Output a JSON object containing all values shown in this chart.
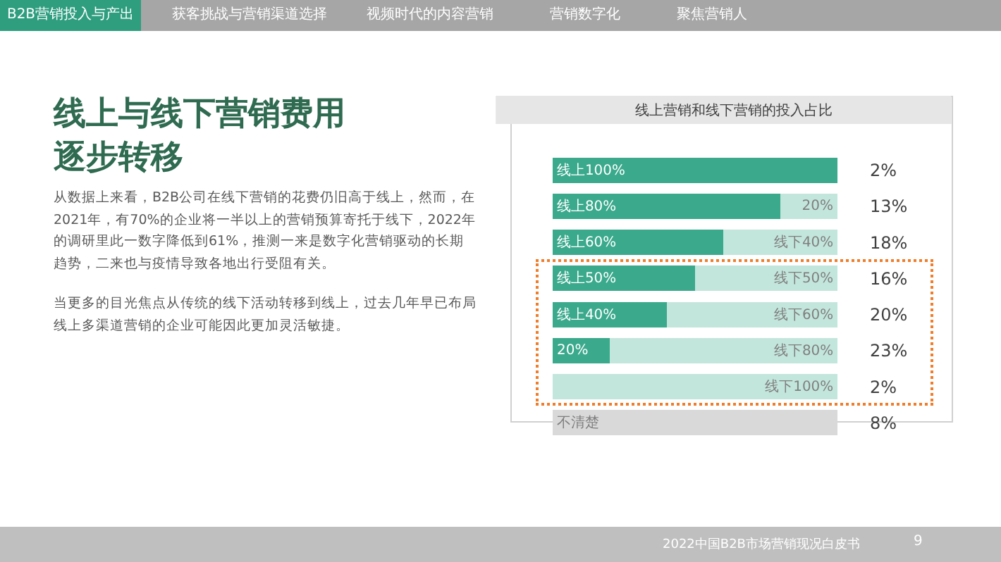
{
  "chart_data": {
    "type": "bar",
    "orientation": "horizontal",
    "stacked": true,
    "xlim": [
      0,
      100
    ],
    "tick_labels": "y",
    "title": "线上营销和线下营销的投入占比",
    "categories": [
      "2%",
      "13%",
      "18%",
      "16%",
      "20%",
      "23%",
      "2%",
      "8%"
    ],
    "series": [
      {
        "name": null,
        "color": "#3aa98c",
        "values": [
          100,
          80,
          60,
          50,
          40,
          20,
          0,
          null
        ],
        "value_labels": [
          "线上100%",
          "线上80%",
          "线上60%",
          "线上50%",
          "线上40%",
          "20%",
          null,
          null
        ]
      },
      {
        "name": null,
        "color": "#c3e6dc",
        "values": [
          0,
          20,
          40,
          50,
          60,
          80,
          100,
          null
        ],
        "value_labels": [
          null,
          "20%",
          "线下40%",
          "线下50%",
          "线下60%",
          "线下80%",
          "线下100%",
          null
        ]
      },
      {
        "name": null,
        "color": "#d9d9d9",
        "values": [
          null,
          null,
          null,
          null,
          null,
          null,
          null,
          100
        ],
        "value_labels": [
          null,
          null,
          null,
          null,
          null,
          null,
          null,
          "不清楚"
        ]
      }
    ],
    "annotations": [
      "B2B营销投入与产出",
      "获客挑战与营销渠道选择",
      "视频时代的内容营销",
      "营销数字化",
      "聚焦营销人",
      "线上与线下营销费用逐步转移",
      "从数据上来看，B2B公司在线下营销的花费仍旧高于线上，然而，在2021年，有70%的企业将一半以上的营销预算寄托于线下，2022年的调研里此一数字降低到61%，推测一来是数字化营销驱动的长期趋势，二来也与疫情导致各地出行受阻有关。",
      "当更多的目光焦点从传统的线下活动转移到线上，过去几年早已布局线上多渠道营销的企业可能因此更加灵活敏捷。",
      "2022中国B2B市场营销现况白皮书",
      "9"
    ]
  }
}
